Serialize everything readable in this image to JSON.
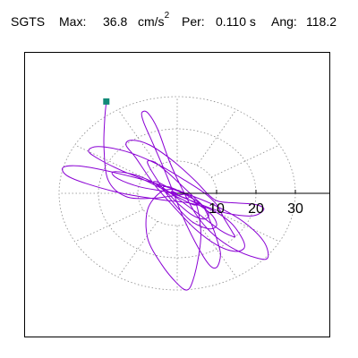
{
  "header": {
    "station": "SGTS",
    "max_label": "Max:",
    "max_value": "36.8",
    "max_unit": "cm/s",
    "max_unit_exp": "2",
    "per_label": "Per:",
    "per_value": "0.110 s",
    "ang_label": "Ang:",
    "ang_value": "118.2"
  },
  "chart_data": {
    "type": "scatter",
    "title": "",
    "rings": [
      10,
      20,
      30
    ],
    "ring_labels": [
      "10",
      "20",
      "30"
    ],
    "spoke_angles_deg": [
      0,
      30,
      60,
      90,
      120,
      150,
      180,
      210,
      240,
      270,
      300,
      330
    ],
    "grid": "dotted polar",
    "max_amplitude": 36.8,
    "max_angle_deg": 118.2,
    "period_s": 0.11,
    "start_marker": {
      "x": -18.0,
      "y": 28.5,
      "color": "#128a78"
    },
    "trace_color": "#8a00d4",
    "axis_color": "#000000",
    "grid_color": "#888888",
    "trace": [
      [
        -18.0,
        28.5
      ],
      [
        -18.4,
        23.0
      ],
      [
        -18.6,
        14.0
      ],
      [
        -17.5,
        4.0
      ],
      [
        -13.0,
        -1.0
      ],
      [
        -6.0,
        -1.5
      ],
      [
        0.5,
        -0.5
      ],
      [
        3.0,
        -0.5
      ],
      [
        5.0,
        -4.0
      ],
      [
        6.0,
        -12.0
      ],
      [
        5.5,
        -19.0
      ],
      [
        4.0,
        -27.0
      ],
      [
        2.5,
        -30.0
      ],
      [
        0.0,
        -28.0
      ],
      [
        -4.0,
        -22.0
      ],
      [
        -7.5,
        -14.0
      ],
      [
        -7.5,
        -5.0
      ],
      [
        -4.0,
        0.5
      ],
      [
        0.0,
        1.0
      ],
      [
        3.0,
        -1.0
      ],
      [
        6.5,
        -4.0
      ],
      [
        8.5,
        -9.0
      ],
      [
        10.0,
        -14.0
      ],
      [
        11.0,
        -19.0
      ],
      [
        10.0,
        -23.0
      ],
      [
        8.0,
        -22.0
      ],
      [
        4.5,
        -15.0
      ],
      [
        1.0,
        -6.0
      ],
      [
        -2.5,
        5.0
      ],
      [
        -6.0,
        15.0
      ],
      [
        -8.5,
        22.0
      ],
      [
        -9.0,
        25.0
      ],
      [
        -7.5,
        25.0
      ],
      [
        -5.0,
        20.0
      ],
      [
        -2.0,
        10.0
      ],
      [
        1.0,
        2.0
      ],
      [
        4.5,
        -6.0
      ],
      [
        8.5,
        -12.0
      ],
      [
        14.0,
        -17.0
      ],
      [
        20.0,
        -20.0
      ],
      [
        23.0,
        -20.0
      ],
      [
        22.0,
        -15.0
      ],
      [
        17.0,
        -9.0
      ],
      [
        10.0,
        -4.0
      ],
      [
        2.0,
        0.0
      ],
      [
        -8.0,
        4.0
      ],
      [
        -18.0,
        7.0
      ],
      [
        -25.0,
        8.5
      ],
      [
        -29.0,
        8.0
      ],
      [
        -28.0,
        5.5
      ],
      [
        -23.0,
        3.0
      ],
      [
        -14.0,
        0.0
      ],
      [
        -4.0,
        -2.0
      ],
      [
        3.0,
        -3.0
      ],
      [
        8.5,
        -5.0
      ],
      [
        13.5,
        -9.0
      ],
      [
        16.5,
        -14.0
      ],
      [
        17.0,
        -17.0
      ],
      [
        14.5,
        -18.0
      ],
      [
        10.0,
        -16.0
      ],
      [
        4.5,
        -11.0
      ],
      [
        -1.0,
        -4.0
      ],
      [
        -6.0,
        3.0
      ],
      [
        -10.5,
        11.0
      ],
      [
        -13.0,
        15.0
      ],
      [
        -11.5,
        16.5
      ],
      [
        -7.0,
        15.0
      ],
      [
        -1.0,
        10.0
      ],
      [
        4.5,
        4.0
      ],
      [
        8.0,
        -0.5
      ],
      [
        10.5,
        -2.5
      ],
      [
        15.0,
        -3.0
      ],
      [
        20.0,
        -3.5
      ],
      [
        22.0,
        -5.0
      ],
      [
        19.0,
        -7.0
      ],
      [
        12.0,
        -6.0
      ],
      [
        4.0,
        -2.5
      ],
      [
        -3.0,
        1.0
      ],
      [
        -9.0,
        4.5
      ],
      [
        -14.0,
        7.0
      ],
      [
        -19.0,
        10.0
      ],
      [
        -22.5,
        13.0
      ],
      [
        -20.0,
        14.5
      ],
      [
        -13.0,
        13.0
      ],
      [
        -5.0,
        9.0
      ],
      [
        2.0,
        4.0
      ],
      [
        7.0,
        0.0
      ],
      [
        10.0,
        -3.5
      ],
      [
        12.0,
        -8.0
      ],
      [
        14.0,
        -12.0
      ],
      [
        14.5,
        -13.5
      ],
      [
        11.0,
        -11.5
      ],
      [
        5.0,
        -6.0
      ],
      [
        0.0,
        -1.5
      ],
      [
        -4.0,
        2.0
      ],
      [
        -9.0,
        5.0
      ],
      [
        -13.5,
        6.5
      ],
      [
        -16.5,
        6.5
      ],
      [
        -15.0,
        4.5
      ],
      [
        -9.5,
        2.0
      ],
      [
        -3.0,
        0.5
      ],
      [
        2.0,
        -1.5
      ],
      [
        6.0,
        -4.0
      ],
      [
        9.0,
        -7.0
      ],
      [
        10.0,
        -10.0
      ],
      [
        8.0,
        -11.0
      ],
      [
        4.0,
        -9.0
      ],
      [
        0.5,
        -5.0
      ],
      [
        -2.5,
        -0.5
      ],
      [
        -5.0,
        4.0
      ],
      [
        -7.0,
        8.0
      ],
      [
        -7.5,
        10.0
      ],
      [
        -5.5,
        9.5
      ],
      [
        -2.0,
        6.0
      ],
      [
        1.5,
        2.0
      ],
      [
        4.5,
        -1.5
      ],
      [
        7.0,
        -4.5
      ],
      [
        8.0,
        -7.0
      ],
      [
        6.5,
        -8.0
      ],
      [
        3.5,
        -6.5
      ],
      [
        0.5,
        -3.5
      ],
      [
        -2.0,
        -0.5
      ],
      [
        -4.5,
        2.0
      ],
      [
        -6.0,
        3.5
      ],
      [
        -5.0,
        3.5
      ],
      [
        -2.5,
        2.0
      ],
      [
        0.5,
        0.5
      ],
      [
        3.0,
        -1.0
      ],
      [
        5.0,
        -2.5
      ],
      [
        5.5,
        -3.5
      ],
      [
        4.0,
        -3.5
      ],
      [
        1.5,
        -2.0
      ],
      [
        -1.0,
        -0.5
      ],
      [
        -3.0,
        1.0
      ],
      [
        -3.5,
        2.0
      ],
      [
        -2.0,
        2.0
      ],
      [
        0.0,
        1.0
      ],
      [
        2.0,
        0.0
      ],
      [
        3.0,
        -1.0
      ],
      [
        2.5,
        -1.5
      ],
      [
        1.0,
        -1.0
      ],
      [
        -0.5,
        0.0
      ],
      [
        -1.5,
        0.5
      ],
      [
        -1.0,
        0.5
      ],
      [
        0.0,
        0.0
      ]
    ]
  }
}
